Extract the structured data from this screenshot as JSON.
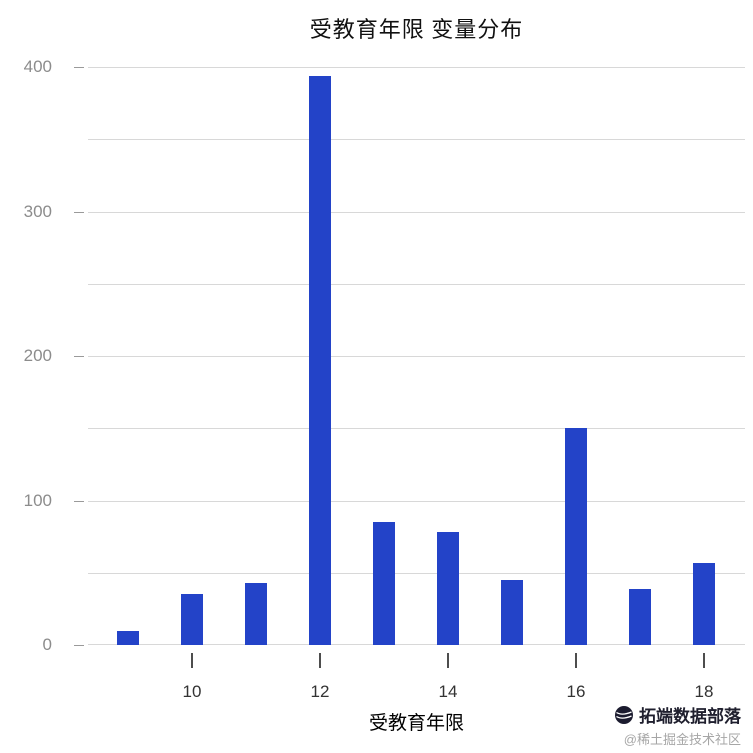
{
  "chart_data": {
    "type": "bar",
    "title": "受教育年限 变量分布",
    "xlabel": "受教育年限",
    "ylabel": "",
    "categories": [
      9,
      10,
      11,
      12,
      13,
      14,
      15,
      16,
      17,
      18
    ],
    "values": [
      10,
      35,
      43,
      394,
      85,
      78,
      45,
      150,
      39,
      57
    ],
    "ylim": [
      0,
      400
    ],
    "yticks": [
      0,
      100,
      200,
      300,
      400
    ],
    "ytick_labels": [
      "0",
      "100",
      "200",
      "300",
      "400"
    ],
    "gridlines": [
      0,
      50,
      100,
      150,
      200,
      250,
      300,
      350,
      400
    ],
    "xticks": [
      10,
      12,
      14,
      16,
      18
    ],
    "xtick_labels": [
      "10",
      "12",
      "14",
      "16",
      "18"
    ],
    "bar_color": "#2343c8",
    "grid_color": "#d8d8d8",
    "tick_color": "#9a9a9a",
    "legend": "none",
    "grid": "on"
  },
  "watermark": {
    "brand": "拓端数据部落",
    "community": "@稀土掘金技术社区"
  }
}
